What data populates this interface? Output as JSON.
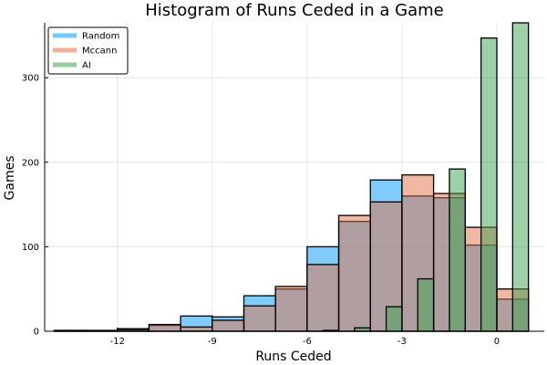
{
  "chart_data": {
    "type": "bar",
    "title": "Histogram of Runs Ceded in a Game",
    "xlabel": "Runs Ceded",
    "ylabel": "Games",
    "xlim": [
      -14.3,
      1.5
    ],
    "ylim": [
      0,
      365
    ],
    "xticks": [
      -12,
      -9,
      -6,
      -3,
      0
    ],
    "xtick_labels": [
      "-12",
      "-9",
      "-6",
      "-3",
      "0"
    ],
    "yticks": [
      0,
      100,
      200,
      300
    ],
    "ytick_labels": [
      "0",
      "100",
      "200",
      "300"
    ],
    "grid": true,
    "legend_position": "top-left",
    "series": [
      {
        "name": "Random",
        "color": "#009af9",
        "opacity": 0.5,
        "bin_edges": [
          -14,
          -13,
          -12,
          -11,
          -10,
          -9,
          -8,
          -7,
          -6,
          -5,
          -4,
          -3,
          -2,
          -1,
          0,
          1
        ],
        "counts": [
          1,
          1,
          3,
          7,
          18,
          17,
          42,
          50,
          100,
          130,
          179,
          160,
          158,
          102,
          38
        ]
      },
      {
        "name": "Mccann",
        "color": "#e26f46",
        "opacity": 0.5,
        "bin_edges": [
          -14,
          -13,
          -12,
          -11,
          -10,
          -9,
          -8,
          -7,
          -6,
          -5,
          -4,
          -3,
          -2,
          -1,
          0,
          1
        ],
        "counts": [
          1,
          0,
          2,
          8,
          5,
          13,
          30,
          53,
          79,
          137,
          153,
          185,
          163,
          123,
          50
        ]
      },
      {
        "name": "AI",
        "color": "#3da44d",
        "opacity": 0.5,
        "bin_edges": [
          -14,
          -13.5,
          -13,
          -12.5,
          -12,
          -11.5,
          -11,
          -10.5,
          -10,
          -9.5,
          -9,
          -8.5,
          -8,
          -7.5,
          -7,
          -6.5,
          -6,
          -5.5,
          -5,
          -4.5,
          -4,
          -3.5,
          -3,
          -2.5,
          -2,
          -1.5,
          -1,
          -0.5,
          0,
          0.5,
          1
        ],
        "counts": [
          0,
          0,
          0,
          0,
          0,
          0,
          0,
          0,
          0,
          0,
          0,
          0,
          0,
          0,
          0,
          0,
          0,
          1,
          0,
          4,
          0,
          29,
          0,
          62,
          0,
          192,
          0,
          347,
          0,
          365
        ]
      }
    ]
  }
}
